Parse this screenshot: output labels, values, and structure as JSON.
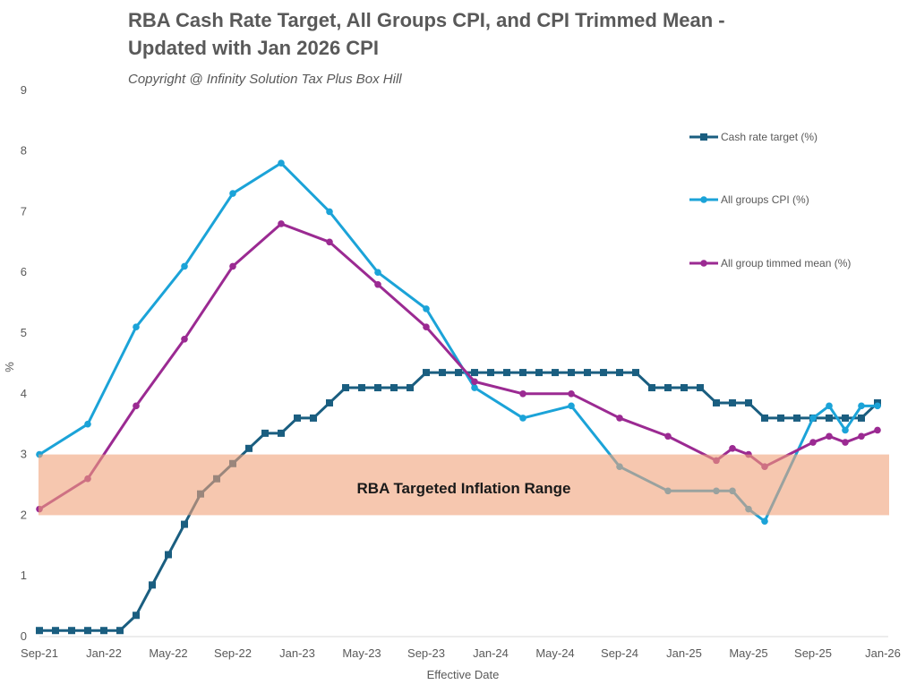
{
  "chart_data": {
    "type": "line",
    "title_line1": "RBA Cash Rate Target, All Groups CPI, and CPI Trimmed Mean -",
    "title_line2": "Updated with Jan 2026 CPI",
    "subtitle": "Copyright @ Infinity Solution Tax Plus Box Hill",
    "xlabel": "Effective Date",
    "ylabel": "%",
    "ylim": [
      0,
      9
    ],
    "yticks": [
      "0",
      "1",
      "2",
      "3",
      "4",
      "5",
      "6",
      "7",
      "8",
      "9"
    ],
    "x_months": [
      "Sep-21",
      "Oct-21",
      "Nov-21",
      "Dec-21",
      "Jan-22",
      "Feb-22",
      "Mar-22",
      "Apr-22",
      "May-22",
      "Jun-22",
      "Jul-22",
      "Aug-22",
      "Sep-22",
      "Oct-22",
      "Nov-22",
      "Dec-22",
      "Jan-23",
      "Feb-23",
      "Mar-23",
      "Apr-23",
      "May-23",
      "Jun-23",
      "Jul-23",
      "Aug-23",
      "Sep-23",
      "Oct-23",
      "Nov-23",
      "Dec-23",
      "Jan-24",
      "Feb-24",
      "Mar-24",
      "Apr-24",
      "May-24",
      "Jun-24",
      "Jul-24",
      "Aug-24",
      "Sep-24",
      "Oct-24",
      "Nov-24",
      "Dec-24",
      "Jan-25",
      "Feb-25",
      "Mar-25",
      "Apr-25",
      "May-25",
      "Jun-25",
      "Jul-25",
      "Aug-25",
      "Sep-25",
      "Oct-25",
      "Nov-25",
      "Dec-25",
      "Jan-26"
    ],
    "xtick_labels": [
      "Sep-21",
      "Jan-22",
      "May-22",
      "Sep-22",
      "Jan-23",
      "May-23",
      "Sep-23",
      "Jan-24",
      "May-24",
      "Sep-24",
      "Jan-25",
      "May-25",
      "Sep-25",
      "Jan-26"
    ],
    "grid": false,
    "legend_position": "right",
    "band": {
      "label": "RBA Targeted Inflation Range",
      "from": 2,
      "to": 3,
      "color": "#f0a27a"
    },
    "series": [
      {
        "name": "Cash rate target (%)",
        "color": "#1a5e80",
        "marker": "square",
        "points": [
          [
            "Sep-21",
            0.1
          ],
          [
            "Oct-21",
            0.1
          ],
          [
            "Nov-21",
            0.1
          ],
          [
            "Dec-21",
            0.1
          ],
          [
            "Jan-22",
            0.1
          ],
          [
            "Feb-22",
            0.1
          ],
          [
            "Mar-22",
            0.35
          ],
          [
            "Apr-22",
            0.85
          ],
          [
            "May-22",
            1.35
          ],
          [
            "Jun-22",
            1.85
          ],
          [
            "Jul-22",
            2.35
          ],
          [
            "Aug-22",
            2.6
          ],
          [
            "Sep-22",
            2.85
          ],
          [
            "Oct-22",
            3.1
          ],
          [
            "Nov-22",
            3.35
          ],
          [
            "Dec-22",
            3.35
          ],
          [
            "Jan-23",
            3.6
          ],
          [
            "Feb-23",
            3.6
          ],
          [
            "Mar-23",
            3.85
          ],
          [
            "Apr-23",
            4.1
          ],
          [
            "May-23",
            4.1
          ],
          [
            "Jun-23",
            4.1
          ],
          [
            "Jul-23",
            4.1
          ],
          [
            "Aug-23",
            4.1
          ],
          [
            "Sep-23",
            4.35
          ],
          [
            "Oct-23",
            4.35
          ],
          [
            "Nov-23",
            4.35
          ],
          [
            "Dec-23",
            4.35
          ],
          [
            "Jan-24",
            4.35
          ],
          [
            "Feb-24",
            4.35
          ],
          [
            "Mar-24",
            4.35
          ],
          [
            "Apr-24",
            4.35
          ],
          [
            "May-24",
            4.35
          ],
          [
            "Jun-24",
            4.35
          ],
          [
            "Jul-24",
            4.35
          ],
          [
            "Aug-24",
            4.35
          ],
          [
            "Sep-24",
            4.35
          ],
          [
            "Oct-24",
            4.35
          ],
          [
            "Nov-24",
            4.1
          ],
          [
            "Dec-24",
            4.1
          ],
          [
            "Jan-25",
            4.1
          ],
          [
            "Feb-25",
            4.1
          ],
          [
            "Mar-25",
            3.85
          ],
          [
            "Apr-25",
            3.85
          ],
          [
            "May-25",
            3.85
          ],
          [
            "Jun-25",
            3.6
          ],
          [
            "Jul-25",
            3.6
          ],
          [
            "Aug-25",
            3.6
          ],
          [
            "Sep-25",
            3.6
          ],
          [
            "Oct-25",
            3.6
          ],
          [
            "Nov-25",
            3.6
          ],
          [
            "Dec-25",
            3.6
          ],
          [
            "Jan-26",
            3.85
          ]
        ]
      },
      {
        "name": "All groups CPI (%)",
        "color": "#1ba3d8",
        "marker": "circle",
        "points": [
          [
            "Sep-21",
            3.0
          ],
          [
            "Dec-21",
            3.5
          ],
          [
            "Mar-22",
            5.1
          ],
          [
            "Jun-22",
            6.1
          ],
          [
            "Sep-22",
            7.3
          ],
          [
            "Dec-22",
            7.8
          ],
          [
            "Mar-23",
            7.0
          ],
          [
            "Jun-23",
            6.0
          ],
          [
            "Sep-23",
            5.4
          ],
          [
            "Dec-23",
            4.1
          ],
          [
            "Mar-24",
            3.6
          ],
          [
            "Jun-24",
            3.8
          ],
          [
            "Sep-24",
            2.8
          ],
          [
            "Dec-24",
            2.4
          ],
          [
            "Mar-25",
            2.4
          ],
          [
            "Apr-25",
            2.4
          ],
          [
            "May-25",
            2.1
          ],
          [
            "Jun-25",
            1.9
          ],
          [
            "Sep-25",
            3.6
          ],
          [
            "Oct-25",
            3.8
          ],
          [
            "Nov-25",
            3.4
          ],
          [
            "Dec-25",
            3.8
          ],
          [
            "Jan-26",
            3.8
          ]
        ]
      },
      {
        "name": "All group timmed mean (%)",
        "color": "#9b2a92",
        "marker": "circle",
        "points": [
          [
            "Sep-21",
            2.1
          ],
          [
            "Dec-21",
            2.6
          ],
          [
            "Mar-22",
            3.8
          ],
          [
            "Jun-22",
            4.9
          ],
          [
            "Sep-22",
            6.1
          ],
          [
            "Dec-22",
            6.8
          ],
          [
            "Mar-23",
            6.5
          ],
          [
            "Jun-23",
            5.8
          ],
          [
            "Sep-23",
            5.1
          ],
          [
            "Dec-23",
            4.2
          ],
          [
            "Mar-24",
            4.0
          ],
          [
            "Jun-24",
            4.0
          ],
          [
            "Sep-24",
            3.6
          ],
          [
            "Dec-24",
            3.3
          ],
          [
            "Mar-25",
            2.9
          ],
          [
            "Apr-25",
            3.1
          ],
          [
            "May-25",
            3.0
          ],
          [
            "Jun-25",
            2.8
          ],
          [
            "Sep-25",
            3.2
          ],
          [
            "Oct-25",
            3.3
          ],
          [
            "Nov-25",
            3.2
          ],
          [
            "Dec-25",
            3.3
          ],
          [
            "Jan-26",
            3.4
          ]
        ]
      }
    ]
  }
}
